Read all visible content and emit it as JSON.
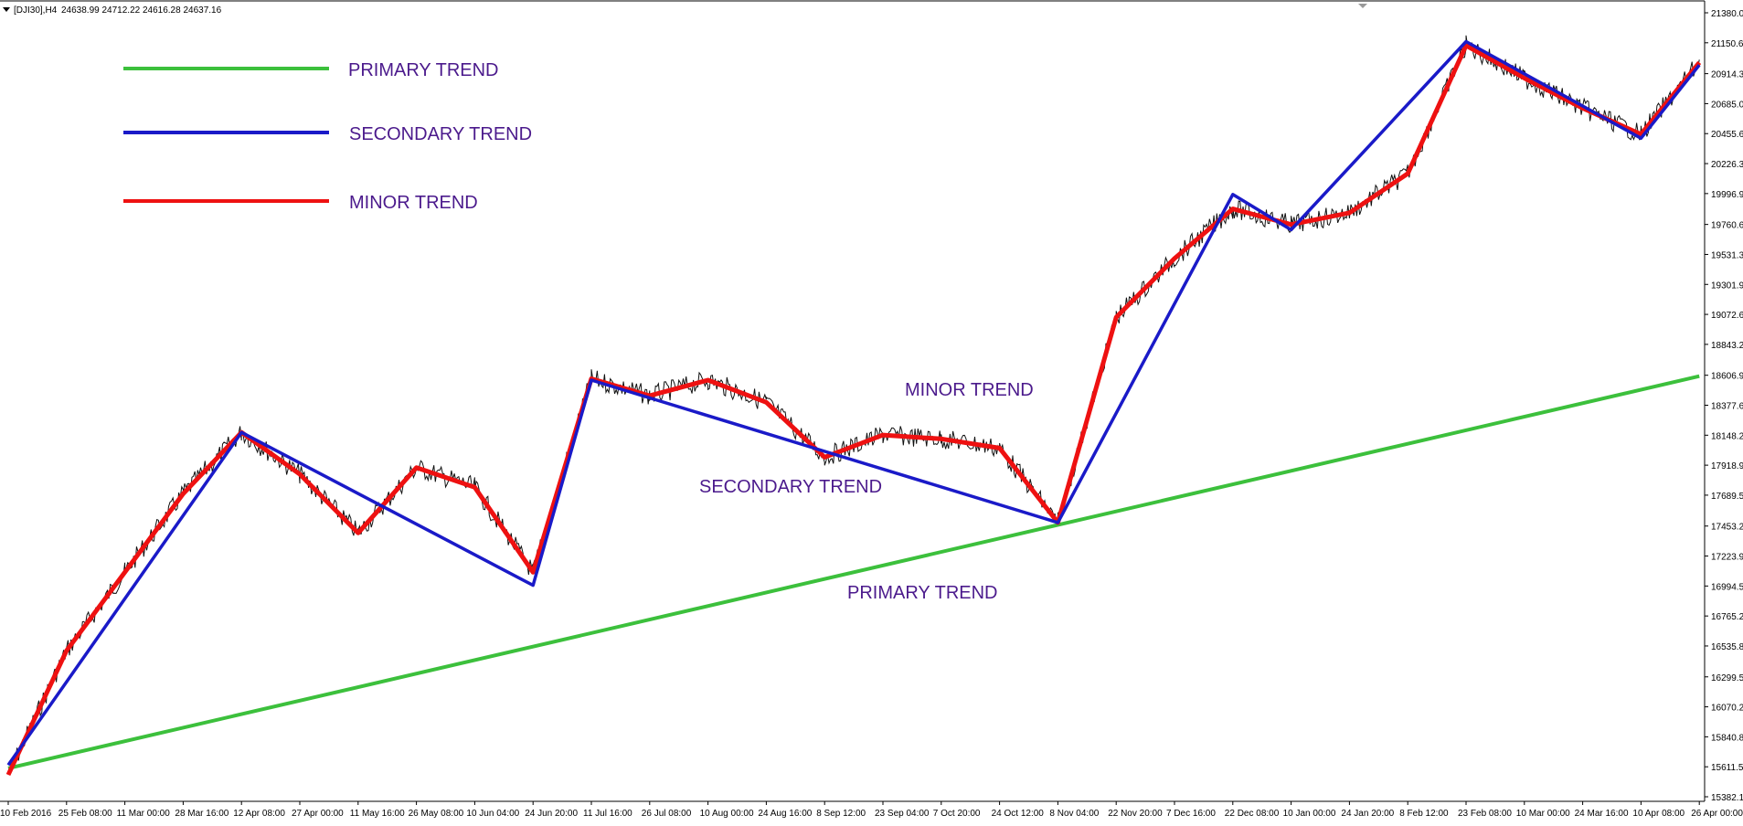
{
  "chart_data": {
    "type": "line",
    "header": {
      "symbol": "[DJI30],H4",
      "ohlc": "24638.99 24712.22 24616.28 24637.16"
    },
    "legend": [
      {
        "label": "PRIMARY TREND",
        "color": "#3cc03c"
      },
      {
        "label": "SECONDARY TREND",
        "color": "#1a1ac8"
      },
      {
        "label": "MINOR TREND",
        "color": "#ee1111"
      }
    ],
    "annotations": [
      "MINOR TREND",
      "SECONDARY TREND",
      "PRIMARY TREND"
    ],
    "y_ticks": [
      "21380.00",
      "21150.65",
      "20914.35",
      "20685.00",
      "20455.65",
      "20226.30",
      "19996.95",
      "19760.65",
      "19531.30",
      "19301.95",
      "19072.60",
      "18843.25",
      "18606.95",
      "18377.60",
      "18148.25",
      "17918.90",
      "17689.55",
      "17453.25",
      "17223.90",
      "16994.55",
      "16765.20",
      "16535.85",
      "16299.55",
      "16070.20",
      "15840.85",
      "15611.50",
      "15382.15"
    ],
    "x_ticks": [
      "10 Feb 2016",
      "25 Feb 08:00",
      "11 Mar 00:00",
      "28 Mar 16:00",
      "12 Apr 08:00",
      "27 Apr 00:00",
      "11 May 16:00",
      "26 May 08:00",
      "10 Jun 04:00",
      "24 Jun 20:00",
      "11 Jul 16:00",
      "26 Jul 08:00",
      "10 Aug 00:00",
      "24 Aug 16:00",
      "8 Sep 12:00",
      "23 Sep 04:00",
      "7 Oct 20:00",
      "24 Oct 12:00",
      "8 Nov 04:00",
      "22 Nov 20:00",
      "7 Dec 16:00",
      "22 Dec 08:00",
      "10 Jan 00:00",
      "24 Jan 20:00",
      "8 Feb 12:00",
      "23 Feb 08:00",
      "10 Mar 00:00",
      "24 Mar 16:00",
      "10 Apr 08:00",
      "26 Apr 00:00"
    ],
    "ylim": [
      15382.15,
      21380.0
    ],
    "series": [
      {
        "name": "PRIMARY TREND",
        "color": "#3cc03c",
        "points": [
          [
            "10 Feb 2016",
            15600
          ],
          [
            "26 Apr 00:00",
            18600
          ]
        ]
      },
      {
        "name": "SECONDARY TREND",
        "color": "#1a1ac8",
        "points": [
          [
            "10 Feb 2016",
            15625
          ],
          [
            "12 Apr 08:00",
            18170
          ],
          [
            "24 Jun 20:00",
            17000
          ],
          [
            "11 Jul 16:00",
            18570
          ],
          [
            "8 Nov 04:00",
            17480
          ],
          [
            "22 Dec 08:00",
            19990
          ],
          [
            "10 Jan 00:00",
            19720
          ],
          [
            "23 Feb 08:00",
            21160
          ],
          [
            "10 Apr 08:00",
            20420
          ],
          [
            "26 Apr 00:00",
            20980
          ]
        ]
      },
      {
        "name": "MINOR TREND",
        "color": "#ee1111",
        "points": [
          [
            "10 Feb 2016",
            15550
          ],
          [
            "25 Feb 08:00",
            16500
          ],
          [
            "11 Mar 00:00",
            17100
          ],
          [
            "28 Mar 16:00",
            17700
          ],
          [
            "12 Apr 08:00",
            18170
          ],
          [
            "27 Apr 00:00",
            17850
          ],
          [
            "11 May 16:00",
            17400
          ],
          [
            "26 May 08:00",
            17900
          ],
          [
            "10 Jun 04:00",
            17750
          ],
          [
            "24 Jun 20:00",
            17100
          ],
          [
            "11 Jul 16:00",
            18580
          ],
          [
            "26 Jul 08:00",
            18450
          ],
          [
            "10 Aug 00:00",
            18570
          ],
          [
            "24 Aug 16:00",
            18400
          ],
          [
            "8 Sep 12:00",
            17980
          ],
          [
            "23 Sep 04:00",
            18150
          ],
          [
            "7 Oct 20:00",
            18120
          ],
          [
            "24 Oct 12:00",
            18050
          ],
          [
            "8 Nov 04:00",
            17480
          ],
          [
            "22 Nov 20:00",
            19050
          ],
          [
            "7 Dec 16:00",
            19500
          ],
          [
            "22 Dec 08:00",
            19880
          ],
          [
            "10 Jan 00:00",
            19760
          ],
          [
            "24 Jan 20:00",
            19850
          ],
          [
            "8 Feb 12:00",
            20150
          ],
          [
            "23 Feb 08:00",
            21130
          ],
          [
            "10 Mar 00:00",
            20880
          ],
          [
            "24 Mar 16:00",
            20650
          ],
          [
            "10 Apr 08:00",
            20450
          ],
          [
            "26 Apr 00:00",
            21000
          ]
        ]
      }
    ]
  }
}
